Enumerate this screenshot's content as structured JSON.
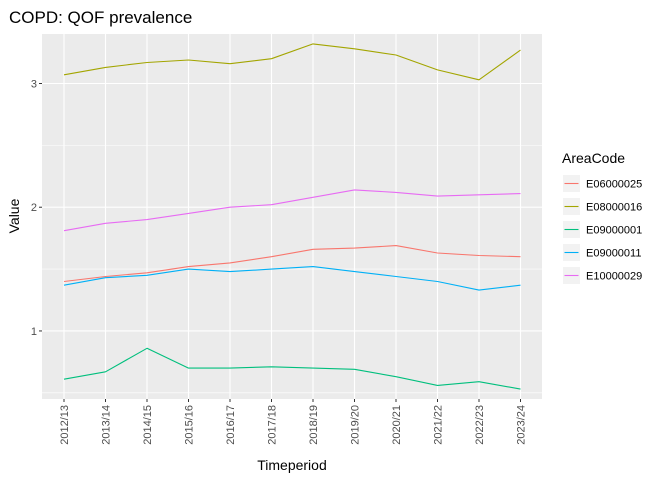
{
  "chart_data": {
    "type": "line",
    "title": "COPD: QOF prevalence",
    "xlabel": "Timeperiod",
    "ylabel": "Value",
    "categories": [
      "2012/13",
      "2013/14",
      "2014/15",
      "2015/16",
      "2016/17",
      "2017/18",
      "2018/19",
      "2019/20",
      "2020/21",
      "2021/22",
      "2022/23",
      "2023/24"
    ],
    "ylim": [
      0.45,
      3.4
    ],
    "yticks": [
      1,
      2,
      3
    ],
    "ytick_labels": [
      "1",
      "2",
      "3"
    ],
    "grid": true,
    "legend": {
      "title": "AreaCode",
      "position": "right"
    },
    "series": [
      {
        "name": "E06000025",
        "color": "#F8766D",
        "values": [
          1.4,
          1.44,
          1.47,
          1.52,
          1.55,
          1.6,
          1.66,
          1.67,
          1.69,
          1.63,
          1.61,
          1.6
        ]
      },
      {
        "name": "E08000016",
        "color": "#A3A500",
        "values": [
          3.07,
          3.13,
          3.17,
          3.19,
          3.16,
          3.2,
          3.32,
          3.28,
          3.23,
          3.11,
          3.03,
          3.27
        ]
      },
      {
        "name": "E09000001",
        "color": "#00BF7D",
        "values": [
          0.61,
          0.67,
          0.86,
          0.7,
          0.7,
          0.71,
          0.7,
          0.69,
          0.63,
          0.56,
          0.59,
          0.53
        ]
      },
      {
        "name": "E09000011",
        "color": "#00B0F6",
        "values": [
          1.37,
          1.43,
          1.45,
          1.5,
          1.48,
          1.5,
          1.52,
          1.48,
          1.44,
          1.4,
          1.33,
          1.37
        ]
      },
      {
        "name": "E10000029",
        "color": "#E76BF3",
        "values": [
          1.81,
          1.87,
          1.9,
          1.95,
          2.0,
          2.02,
          2.08,
          2.14,
          2.12,
          2.09,
          2.1,
          2.11
        ]
      }
    ]
  }
}
